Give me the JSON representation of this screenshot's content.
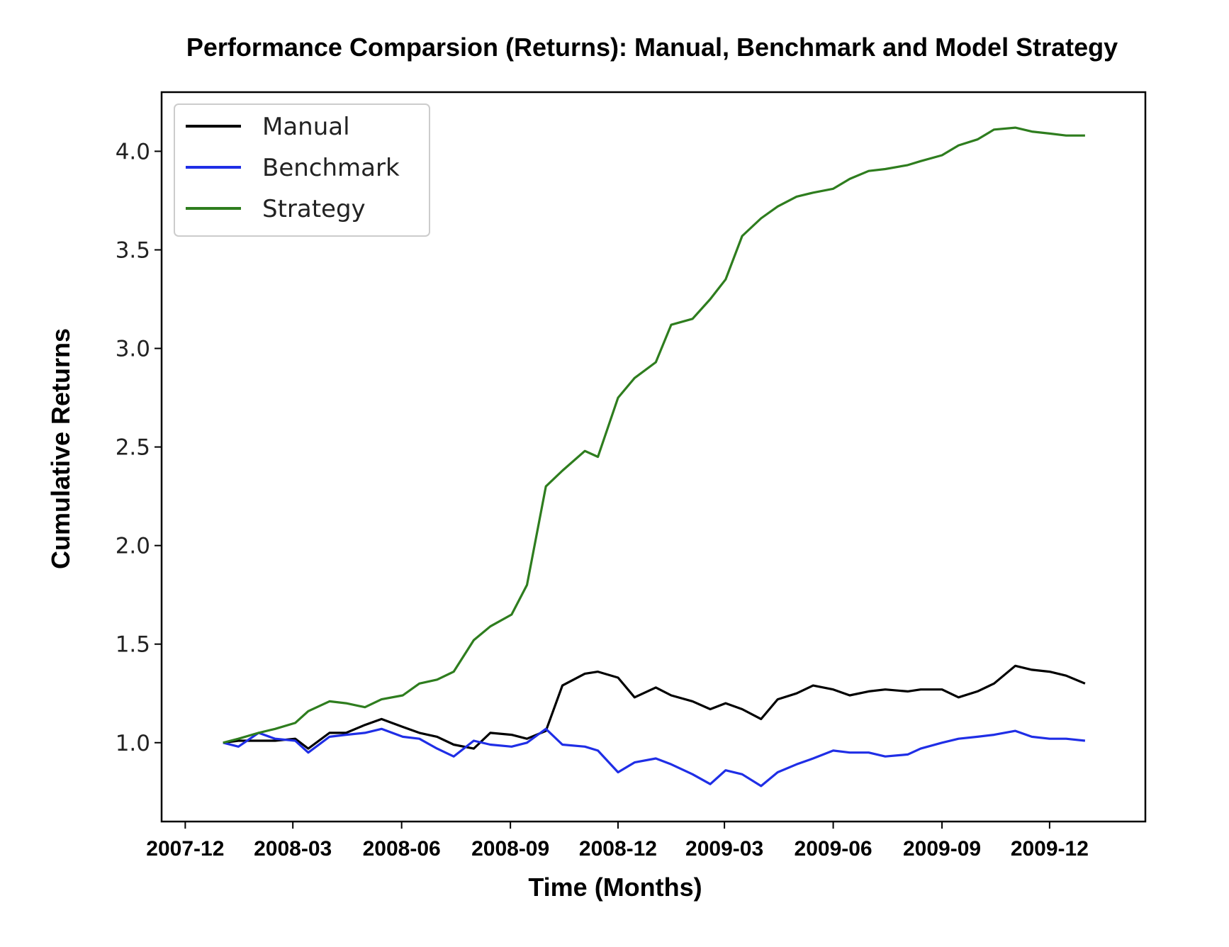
{
  "chart_data": {
    "type": "line",
    "title": "Performance Comparsion (Returns): Manual, Benchmark and Model Strategy",
    "xlabel": "Time (Months)",
    "ylabel": "Cumulative Returns",
    "x_tick_labels": [
      "2007-12",
      "2008-03",
      "2008-06",
      "2008-09",
      "2008-12",
      "2009-03",
      "2009-06",
      "2009-09",
      "2009-12"
    ],
    "y_tick_labels": [
      "1.0",
      "1.5",
      "2.0",
      "2.5",
      "3.0",
      "3.5",
      "4.0"
    ],
    "xlim": [
      "2007-11-11",
      "2010-02-20"
    ],
    "ylim": [
      0.6,
      4.3
    ],
    "grid": false,
    "legend_position": "upper left",
    "series": [
      {
        "name": "Manual",
        "color": "#000000",
        "x": [
          "2008-01-02",
          "2008-01-15",
          "2008-02-01",
          "2008-02-15",
          "2008-03-03",
          "2008-03-14",
          "2008-04-01",
          "2008-04-15",
          "2008-05-01",
          "2008-05-15",
          "2008-06-02",
          "2008-06-16",
          "2008-07-01",
          "2008-07-15",
          "2008-08-01",
          "2008-08-15",
          "2008-09-02",
          "2008-09-15",
          "2008-10-01",
          "2008-10-15",
          "2008-11-03",
          "2008-11-14",
          "2008-12-01",
          "2008-12-15",
          "2009-01-02",
          "2009-01-15",
          "2009-02-02",
          "2009-02-17",
          "2009-03-02",
          "2009-03-16",
          "2009-04-01",
          "2009-04-15",
          "2009-05-01",
          "2009-05-15",
          "2009-06-01",
          "2009-06-15",
          "2009-07-01",
          "2009-07-15",
          "2009-08-03",
          "2009-08-14",
          "2009-09-01",
          "2009-09-15",
          "2009-10-01",
          "2009-10-15",
          "2009-11-02",
          "2009-11-16",
          "2009-12-01",
          "2009-12-15",
          "2009-12-31"
        ],
        "values": [
          1.0,
          1.01,
          1.01,
          1.01,
          1.02,
          0.97,
          1.05,
          1.05,
          1.09,
          1.12,
          1.08,
          1.05,
          1.03,
          0.99,
          0.97,
          1.05,
          1.04,
          1.02,
          1.06,
          1.29,
          1.35,
          1.36,
          1.33,
          1.23,
          1.28,
          1.24,
          1.21,
          1.17,
          1.2,
          1.17,
          1.12,
          1.22,
          1.25,
          1.29,
          1.27,
          1.24,
          1.26,
          1.27,
          1.26,
          1.27,
          1.27,
          1.23,
          1.26,
          1.3,
          1.39,
          1.37,
          1.36,
          1.34,
          1.3
        ]
      },
      {
        "name": "Benchmark",
        "color": "#1f2ee6",
        "x": [
          "2008-01-02",
          "2008-01-15",
          "2008-02-01",
          "2008-02-15",
          "2008-03-03",
          "2008-03-14",
          "2008-04-01",
          "2008-04-15",
          "2008-05-01",
          "2008-05-15",
          "2008-06-02",
          "2008-06-16",
          "2008-07-01",
          "2008-07-15",
          "2008-08-01",
          "2008-08-15",
          "2008-09-02",
          "2008-09-15",
          "2008-10-01",
          "2008-10-15",
          "2008-11-03",
          "2008-11-14",
          "2008-12-01",
          "2008-12-15",
          "2009-01-02",
          "2009-01-15",
          "2009-02-02",
          "2009-02-17",
          "2009-03-02",
          "2009-03-16",
          "2009-04-01",
          "2009-04-15",
          "2009-05-01",
          "2009-05-15",
          "2009-06-01",
          "2009-06-15",
          "2009-07-01",
          "2009-07-15",
          "2009-08-03",
          "2009-08-14",
          "2009-09-01",
          "2009-09-15",
          "2009-10-01",
          "2009-10-15",
          "2009-11-02",
          "2009-11-16",
          "2009-12-01",
          "2009-12-15",
          "2009-12-31"
        ],
        "values": [
          1.0,
          0.98,
          1.05,
          1.02,
          1.01,
          0.95,
          1.03,
          1.04,
          1.05,
          1.07,
          1.03,
          1.02,
          0.97,
          0.93,
          1.01,
          0.99,
          0.98,
          1.0,
          1.07,
          0.99,
          0.98,
          0.96,
          0.85,
          0.9,
          0.92,
          0.89,
          0.84,
          0.79,
          0.86,
          0.84,
          0.78,
          0.85,
          0.89,
          0.92,
          0.96,
          0.95,
          0.95,
          0.93,
          0.94,
          0.97,
          1.0,
          1.02,
          1.03,
          1.04,
          1.06,
          1.03,
          1.02,
          1.02,
          1.01
        ]
      },
      {
        "name": "Strategy",
        "color": "#2e7d1e",
        "x": [
          "2008-01-02",
          "2008-01-15",
          "2008-02-01",
          "2008-02-15",
          "2008-03-03",
          "2008-03-14",
          "2008-04-01",
          "2008-04-15",
          "2008-05-01",
          "2008-05-15",
          "2008-06-02",
          "2008-06-16",
          "2008-07-01",
          "2008-07-15",
          "2008-08-01",
          "2008-08-15",
          "2008-09-02",
          "2008-09-15",
          "2008-10-01",
          "2008-10-15",
          "2008-11-03",
          "2008-11-14",
          "2008-12-01",
          "2008-12-15",
          "2009-01-02",
          "2009-01-15",
          "2009-02-02",
          "2009-02-17",
          "2009-03-02",
          "2009-03-16",
          "2009-04-01",
          "2009-04-15",
          "2009-05-01",
          "2009-05-15",
          "2009-06-01",
          "2009-06-15",
          "2009-07-01",
          "2009-07-15",
          "2009-08-03",
          "2009-08-14",
          "2009-09-01",
          "2009-09-15",
          "2009-10-01",
          "2009-10-15",
          "2009-11-02",
          "2009-11-16",
          "2009-12-01",
          "2009-12-15",
          "2009-12-31"
        ],
        "values": [
          1.0,
          1.02,
          1.05,
          1.07,
          1.1,
          1.16,
          1.21,
          1.2,
          1.18,
          1.22,
          1.24,
          1.3,
          1.32,
          1.36,
          1.52,
          1.59,
          1.65,
          1.8,
          2.3,
          2.38,
          2.48,
          2.45,
          2.75,
          2.85,
          2.93,
          3.12,
          3.15,
          3.25,
          3.35,
          3.57,
          3.66,
          3.72,
          3.77,
          3.79,
          3.81,
          3.86,
          3.9,
          3.91,
          3.93,
          3.95,
          3.98,
          4.03,
          4.06,
          4.11,
          4.12,
          4.1,
          4.09,
          4.08,
          4.08
        ]
      }
    ]
  }
}
